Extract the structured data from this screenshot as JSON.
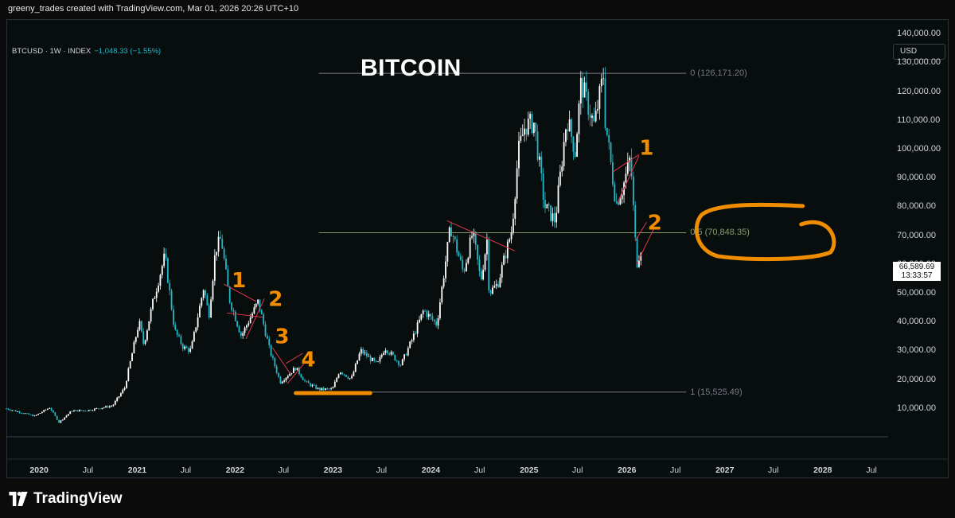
{
  "attribution": "greeny_trades created with TradingView.com, Mar 01, 2026 20:26 UTC+10",
  "symbol": {
    "name": "BTCUSD · 1W · INDEX",
    "change": "−1,048.33 (−1.55%)"
  },
  "title": "BITCOIN",
  "currency_button": "USD",
  "last_price": {
    "value": "66,589.69",
    "countdown": "13:33:57"
  },
  "footer_brand": "TradingView",
  "colors": {
    "background": "#0b0b0b",
    "bull_candle": "#ffffff",
    "bear_candle": "#22b8c8",
    "fib_line": "#787b86",
    "fib_mid_line": "#8a9a6a",
    "trendline": "#e0384b",
    "annotation": "#f08c00"
  },
  "icons": [
    "tradingview-logo-icon"
  ],
  "chart_data": {
    "type": "candlestick",
    "title": "BITCOIN",
    "interval": "1W",
    "x_range": [
      "2019-09-01",
      "2028-09-01"
    ],
    "ylim": [
      0,
      145000
    ],
    "y_ticks": [
      {
        "value": 10000,
        "label": "10,000.00"
      },
      {
        "value": 20000,
        "label": "20,000.00"
      },
      {
        "value": 30000,
        "label": "30,000.00"
      },
      {
        "value": 40000,
        "label": "40,000.00"
      },
      {
        "value": 50000,
        "label": "50,000.00"
      },
      {
        "value": 60000,
        "label": "60,000.00"
      },
      {
        "value": 70000,
        "label": "70,000.00"
      },
      {
        "value": 80000,
        "label": "80,000.00"
      },
      {
        "value": 90000,
        "label": "90,000.00"
      },
      {
        "value": 100000,
        "label": "100,000.00"
      },
      {
        "value": 110000,
        "label": "110,000.00"
      },
      {
        "value": 120000,
        "label": "120,000.00"
      },
      {
        "value": 130000,
        "label": "130,000.00"
      },
      {
        "value": 140000,
        "label": "140,000.00"
      }
    ],
    "x_ticks": [
      {
        "date": "2020-01-01",
        "label": "2020",
        "year": true
      },
      {
        "date": "2020-07-01",
        "label": "Jul",
        "year": false
      },
      {
        "date": "2021-01-01",
        "label": "2021",
        "year": true
      },
      {
        "date": "2021-07-01",
        "label": "Jul",
        "year": false
      },
      {
        "date": "2022-01-01",
        "label": "2022",
        "year": true
      },
      {
        "date": "2022-07-01",
        "label": "Jul",
        "year": false
      },
      {
        "date": "2023-01-01",
        "label": "2023",
        "year": true
      },
      {
        "date": "2023-07-01",
        "label": "Jul",
        "year": false
      },
      {
        "date": "2024-01-01",
        "label": "2024",
        "year": true
      },
      {
        "date": "2024-07-01",
        "label": "Jul",
        "year": false
      },
      {
        "date": "2025-01-01",
        "label": "2025",
        "year": true
      },
      {
        "date": "2025-07-01",
        "label": "Jul",
        "year": false
      },
      {
        "date": "2026-01-01",
        "label": "2026",
        "year": true
      },
      {
        "date": "2026-07-01",
        "label": "Jul",
        "year": false
      },
      {
        "date": "2027-01-01",
        "label": "2027",
        "year": true
      },
      {
        "date": "2027-07-01",
        "label": "Jul",
        "year": false
      },
      {
        "date": "2028-01-01",
        "label": "2028",
        "year": true
      },
      {
        "date": "2028-07-01",
        "label": "Jul",
        "year": false
      }
    ],
    "price_path": [
      [
        "2019-09-01",
        9800
      ],
      [
        "2019-12-15",
        7200
      ],
      [
        "2020-02-10",
        10200
      ],
      [
        "2020-03-15",
        5000
      ],
      [
        "2020-05-01",
        9000
      ],
      [
        "2020-07-01",
        9200
      ],
      [
        "2020-10-01",
        10800
      ],
      [
        "2020-11-15",
        17000
      ],
      [
        "2021-01-08",
        40000
      ],
      [
        "2021-01-25",
        32000
      ],
      [
        "2021-03-01",
        47000
      ],
      [
        "2021-04-14",
        63000
      ],
      [
        "2021-05-20",
        37000
      ],
      [
        "2021-06-22",
        31000
      ],
      [
        "2021-07-20",
        30000
      ],
      [
        "2021-09-06",
        52000
      ],
      [
        "2021-09-25",
        42000
      ],
      [
        "2021-10-20",
        65000
      ],
      [
        "2021-11-10",
        69000
      ],
      [
        "2021-12-10",
        48000
      ],
      [
        "2022-01-24",
        35000
      ],
      [
        "2022-03-28",
        47000
      ],
      [
        "2022-05-10",
        30000
      ],
      [
        "2022-06-18",
        19000
      ],
      [
        "2022-08-15",
        24000
      ],
      [
        "2022-09-20",
        19000
      ],
      [
        "2022-11-09",
        16500
      ],
      [
        "2022-12-30",
        16500
      ],
      [
        "2023-01-25",
        23000
      ],
      [
        "2023-03-10",
        20000
      ],
      [
        "2023-04-14",
        30000
      ],
      [
        "2023-06-15",
        25000
      ],
      [
        "2023-07-14",
        31000
      ],
      [
        "2023-09-11",
        25000
      ],
      [
        "2023-10-24",
        34000
      ],
      [
        "2023-12-05",
        44000
      ],
      [
        "2024-01-23",
        39000
      ],
      [
        "2024-03-14",
        73000
      ],
      [
        "2024-05-01",
        57000
      ],
      [
        "2024-06-05",
        71000
      ],
      [
        "2024-07-05",
        54000
      ],
      [
        "2024-07-29",
        69000
      ],
      [
        "2024-08-05",
        50000
      ],
      [
        "2024-09-06",
        53000
      ],
      [
        "2024-10-29",
        72000
      ],
      [
        "2024-11-22",
        99000
      ],
      [
        "2024-12-17",
        108000
      ],
      [
        "2025-01-20",
        109000
      ],
      [
        "2025-02-28",
        80000
      ],
      [
        "2025-04-08",
        75000
      ],
      [
        "2025-05-22",
        111000
      ],
      [
        "2025-06-22",
        99000
      ],
      [
        "2025-07-14",
        123000
      ],
      [
        "2025-09-01",
        108000
      ],
      [
        "2025-10-06",
        126171
      ],
      [
        "2025-10-12",
        110000
      ],
      [
        "2025-11-21",
        81000
      ],
      [
        "2025-12-15",
        86000
      ],
      [
        "2026-01-14",
        97000
      ],
      [
        "2026-02-06",
        60000
      ],
      [
        "2026-02-25",
        66590
      ]
    ],
    "fibonacci": {
      "start": "2022-11-09",
      "end": "2026-08-10",
      "levels": [
        {
          "ratio": 0,
          "price": 126171.2,
          "label": "0 (126,171.20)"
        },
        {
          "ratio": 0.5,
          "price": 70848.35,
          "label": "0.5 (70,848.35)"
        },
        {
          "ratio": 1,
          "price": 15525.49,
          "label": "1 (15,525.49)"
        }
      ]
    },
    "trendlines": [
      {
        "from": [
          "2021-11-20",
          53000
        ],
        "to": [
          "2022-03-20",
          47000
        ]
      },
      {
        "from": [
          "2021-12-01",
          43000
        ],
        "to": [
          "2022-04-15",
          41500
        ]
      },
      {
        "from": [
          "2022-02-10",
          34000
        ],
        "to": [
          "2022-04-20",
          48000
        ]
      },
      {
        "from": [
          "2022-05-20",
          31000
        ],
        "to": [
          "2022-07-25",
          22000
        ]
      },
      {
        "from": [
          "2022-07-10",
          25500
        ],
        "to": [
          "2022-09-10",
          29000
        ]
      },
      {
        "from": [
          "2022-07-15",
          18500
        ],
        "to": [
          "2022-09-20",
          26000
        ]
      },
      {
        "from": [
          "2024-03-01",
          75000
        ],
        "to": [
          "2024-11-10",
          64500
        ]
      },
      {
        "from": [
          "2025-11-10",
          92000
        ],
        "to": [
          "2026-02-15",
          98000
        ]
      },
      {
        "from": [
          "2025-11-25",
          81000
        ],
        "to": [
          "2026-02-15",
          97500
        ]
      },
      {
        "from": [
          "2026-02-01",
          68000
        ],
        "to": [
          "2026-03-15",
          74500
        ]
      },
      {
        "from": [
          "2026-02-06",
          60000
        ],
        "to": [
          "2026-04-10",
          72000
        ]
      }
    ],
    "annotations": [
      {
        "type": "text",
        "text": "1",
        "at": [
          "2022-01-15",
          54000
        ]
      },
      {
        "type": "text",
        "text": "2",
        "at": [
          "2022-06-01",
          47500
        ]
      },
      {
        "type": "text",
        "text": "3",
        "at": [
          "2022-06-25",
          34500
        ]
      },
      {
        "type": "text",
        "text": "4",
        "at": [
          "2022-10-01",
          26500
        ]
      },
      {
        "type": "text",
        "text": "1",
        "at": [
          "2026-03-15",
          100000
        ]
      },
      {
        "type": "text",
        "text": "2",
        "at": [
          "2026-04-15",
          74000
        ]
      },
      {
        "type": "underline",
        "from": [
          "2022-08-15",
          15200
        ],
        "to": [
          "2023-05-20",
          15200
        ]
      },
      {
        "type": "circle",
        "center": [
          "2027-06-01",
          71000
        ],
        "around": "0.5 (70,848.35)"
      }
    ],
    "legend": "none",
    "grid": false,
    "scale": "linear"
  }
}
